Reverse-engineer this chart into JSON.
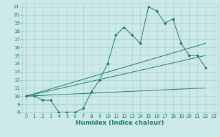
{
  "xlabel": "Humidex (Indice chaleur)",
  "ylabel": "",
  "bg_color": "#cce8e8",
  "line_color": "#1a7a6e",
  "xlim": [
    -0.5,
    23.5
  ],
  "ylim": [
    8,
    21.5
  ],
  "yticks": [
    8,
    9,
    10,
    11,
    12,
    13,
    14,
    15,
    16,
    17,
    18,
    19,
    20,
    21
  ],
  "xticks": [
    0,
    1,
    2,
    3,
    4,
    5,
    6,
    7,
    8,
    9,
    10,
    11,
    12,
    13,
    14,
    15,
    16,
    17,
    18,
    19,
    20,
    21,
    22,
    23
  ],
  "series": {
    "main": {
      "x": [
        0,
        1,
        2,
        3,
        4,
        5,
        6,
        7,
        8,
        9,
        10,
        11,
        12,
        13,
        14,
        15,
        16,
        17,
        18,
        19,
        20,
        21,
        22
      ],
      "y": [
        10,
        10,
        9.5,
        9.5,
        8,
        8,
        8,
        8.5,
        10.5,
        12,
        14,
        17.5,
        18.5,
        17.5,
        16.5,
        21,
        20.5,
        19,
        19.5,
        16.5,
        15,
        15,
        13.5
      ]
    },
    "line1": {
      "x": [
        0,
        22
      ],
      "y": [
        10,
        16.5
      ]
    },
    "line2": {
      "x": [
        0,
        22
      ],
      "y": [
        10,
        15
      ]
    },
    "line3": {
      "x": [
        0,
        22
      ],
      "y": [
        10,
        11
      ]
    }
  },
  "font_color": "#1a7a6e",
  "grid_color": "#9ecece",
  "tick_fontsize": 5.0,
  "label_fontsize": 6.5
}
